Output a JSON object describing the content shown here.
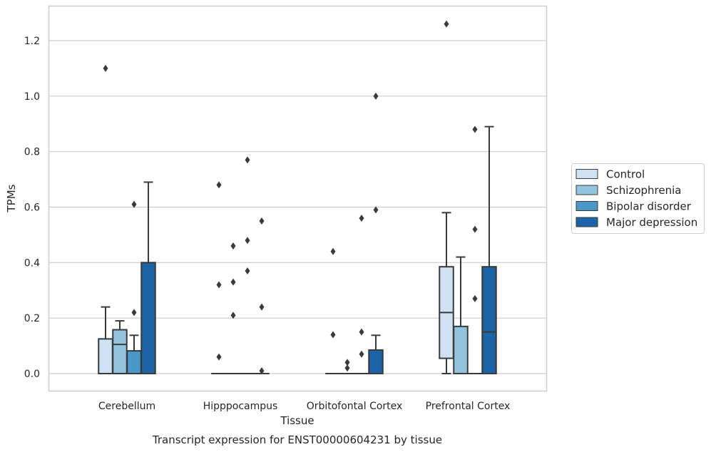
{
  "chart_data": {
    "type": "box",
    "xlabel": "Tissue",
    "ylabel": "TPMs",
    "caption": "Transcript expression for ENST00000604231 by tissue",
    "ylim": [
      -0.06,
      1.33
    ],
    "yticks": [
      "0.0",
      "0.2",
      "0.4",
      "0.6",
      "0.8",
      "1.0",
      "1.2"
    ],
    "grid": "horizontal",
    "legend_position": "right",
    "categories": [
      "Cerebellum",
      "Hipppocampus",
      "Orbitofontal Cortex",
      "Prefrontal Cortex"
    ],
    "series": [
      {
        "name": "Control",
        "color": "#cfe1f2",
        "boxes": [
          {
            "q1": 0.0,
            "median": 0.0,
            "q3": 0.125,
            "whisker_low": 0.0,
            "whisker_high": 0.24,
            "outliers": [
              1.1
            ]
          },
          {
            "q1": 0.0,
            "median": 0.0,
            "q3": 0.0,
            "whisker_low": 0.0,
            "whisker_high": 0.0,
            "outliers": [
              0.06,
              0.32,
              0.68
            ]
          },
          {
            "q1": 0.0,
            "median": 0.0,
            "q3": 0.0,
            "whisker_low": 0.0,
            "whisker_high": 0.0,
            "outliers": [
              0.14,
              0.44
            ]
          },
          {
            "q1": 0.055,
            "median": 0.22,
            "q3": 0.385,
            "whisker_low": 0.0,
            "whisker_high": 0.58,
            "outliers": [
              1.26
            ]
          }
        ]
      },
      {
        "name": "Schizophrenia",
        "color": "#93c4de",
        "boxes": [
          {
            "q1": 0.0,
            "median": 0.105,
            "q3": 0.158,
            "whisker_low": 0.0,
            "whisker_high": 0.19,
            "outliers": []
          },
          {
            "q1": 0.0,
            "median": 0.0,
            "q3": 0.0,
            "whisker_low": 0.0,
            "whisker_high": 0.0,
            "outliers": [
              0.21,
              0.33,
              0.46
            ]
          },
          {
            "q1": 0.0,
            "median": 0.0,
            "q3": 0.0,
            "whisker_low": 0.0,
            "whisker_high": 0.0,
            "outliers": [
              0.02,
              0.04
            ]
          },
          {
            "q1": 0.0,
            "median": 0.0,
            "q3": 0.17,
            "whisker_low": 0.0,
            "whisker_high": 0.42,
            "outliers": []
          }
        ]
      },
      {
        "name": "Bipolar disorder",
        "color": "#4a98c9",
        "boxes": [
          {
            "q1": 0.0,
            "median": 0.0,
            "q3": 0.082,
            "whisker_low": 0.0,
            "whisker_high": 0.138,
            "outliers": [
              0.22,
              0.61
            ]
          },
          {
            "q1": 0.0,
            "median": 0.0,
            "q3": 0.0,
            "whisker_low": 0.0,
            "whisker_high": 0.0,
            "outliers": [
              0.37,
              0.48,
              0.77
            ]
          },
          {
            "q1": 0.0,
            "median": 0.0,
            "q3": 0.0,
            "whisker_low": 0.0,
            "whisker_high": 0.0,
            "outliers": [
              0.07,
              0.15,
              0.56
            ]
          },
          {
            "q1": 0.0,
            "median": 0.0,
            "q3": 0.0,
            "whisker_low": 0.0,
            "whisker_high": 0.0,
            "outliers": [
              0.27,
              0.52,
              0.88
            ]
          }
        ]
      },
      {
        "name": "Major depression",
        "color": "#1c63a8",
        "boxes": [
          {
            "q1": 0.0,
            "median": 0.0,
            "q3": 0.4,
            "whisker_low": 0.0,
            "whisker_high": 0.69,
            "outliers": []
          },
          {
            "q1": 0.0,
            "median": 0.0,
            "q3": 0.0,
            "whisker_low": 0.0,
            "whisker_high": 0.0,
            "outliers": [
              0.01,
              0.24,
              0.55
            ]
          },
          {
            "q1": 0.0,
            "median": 0.0,
            "q3": 0.085,
            "whisker_low": 0.0,
            "whisker_high": 0.138,
            "outliers": [
              0.59,
              1.0
            ]
          },
          {
            "q1": 0.0,
            "median": 0.15,
            "q3": 0.385,
            "whisker_low": 0.0,
            "whisker_high": 0.89,
            "outliers": []
          }
        ]
      }
    ]
  }
}
